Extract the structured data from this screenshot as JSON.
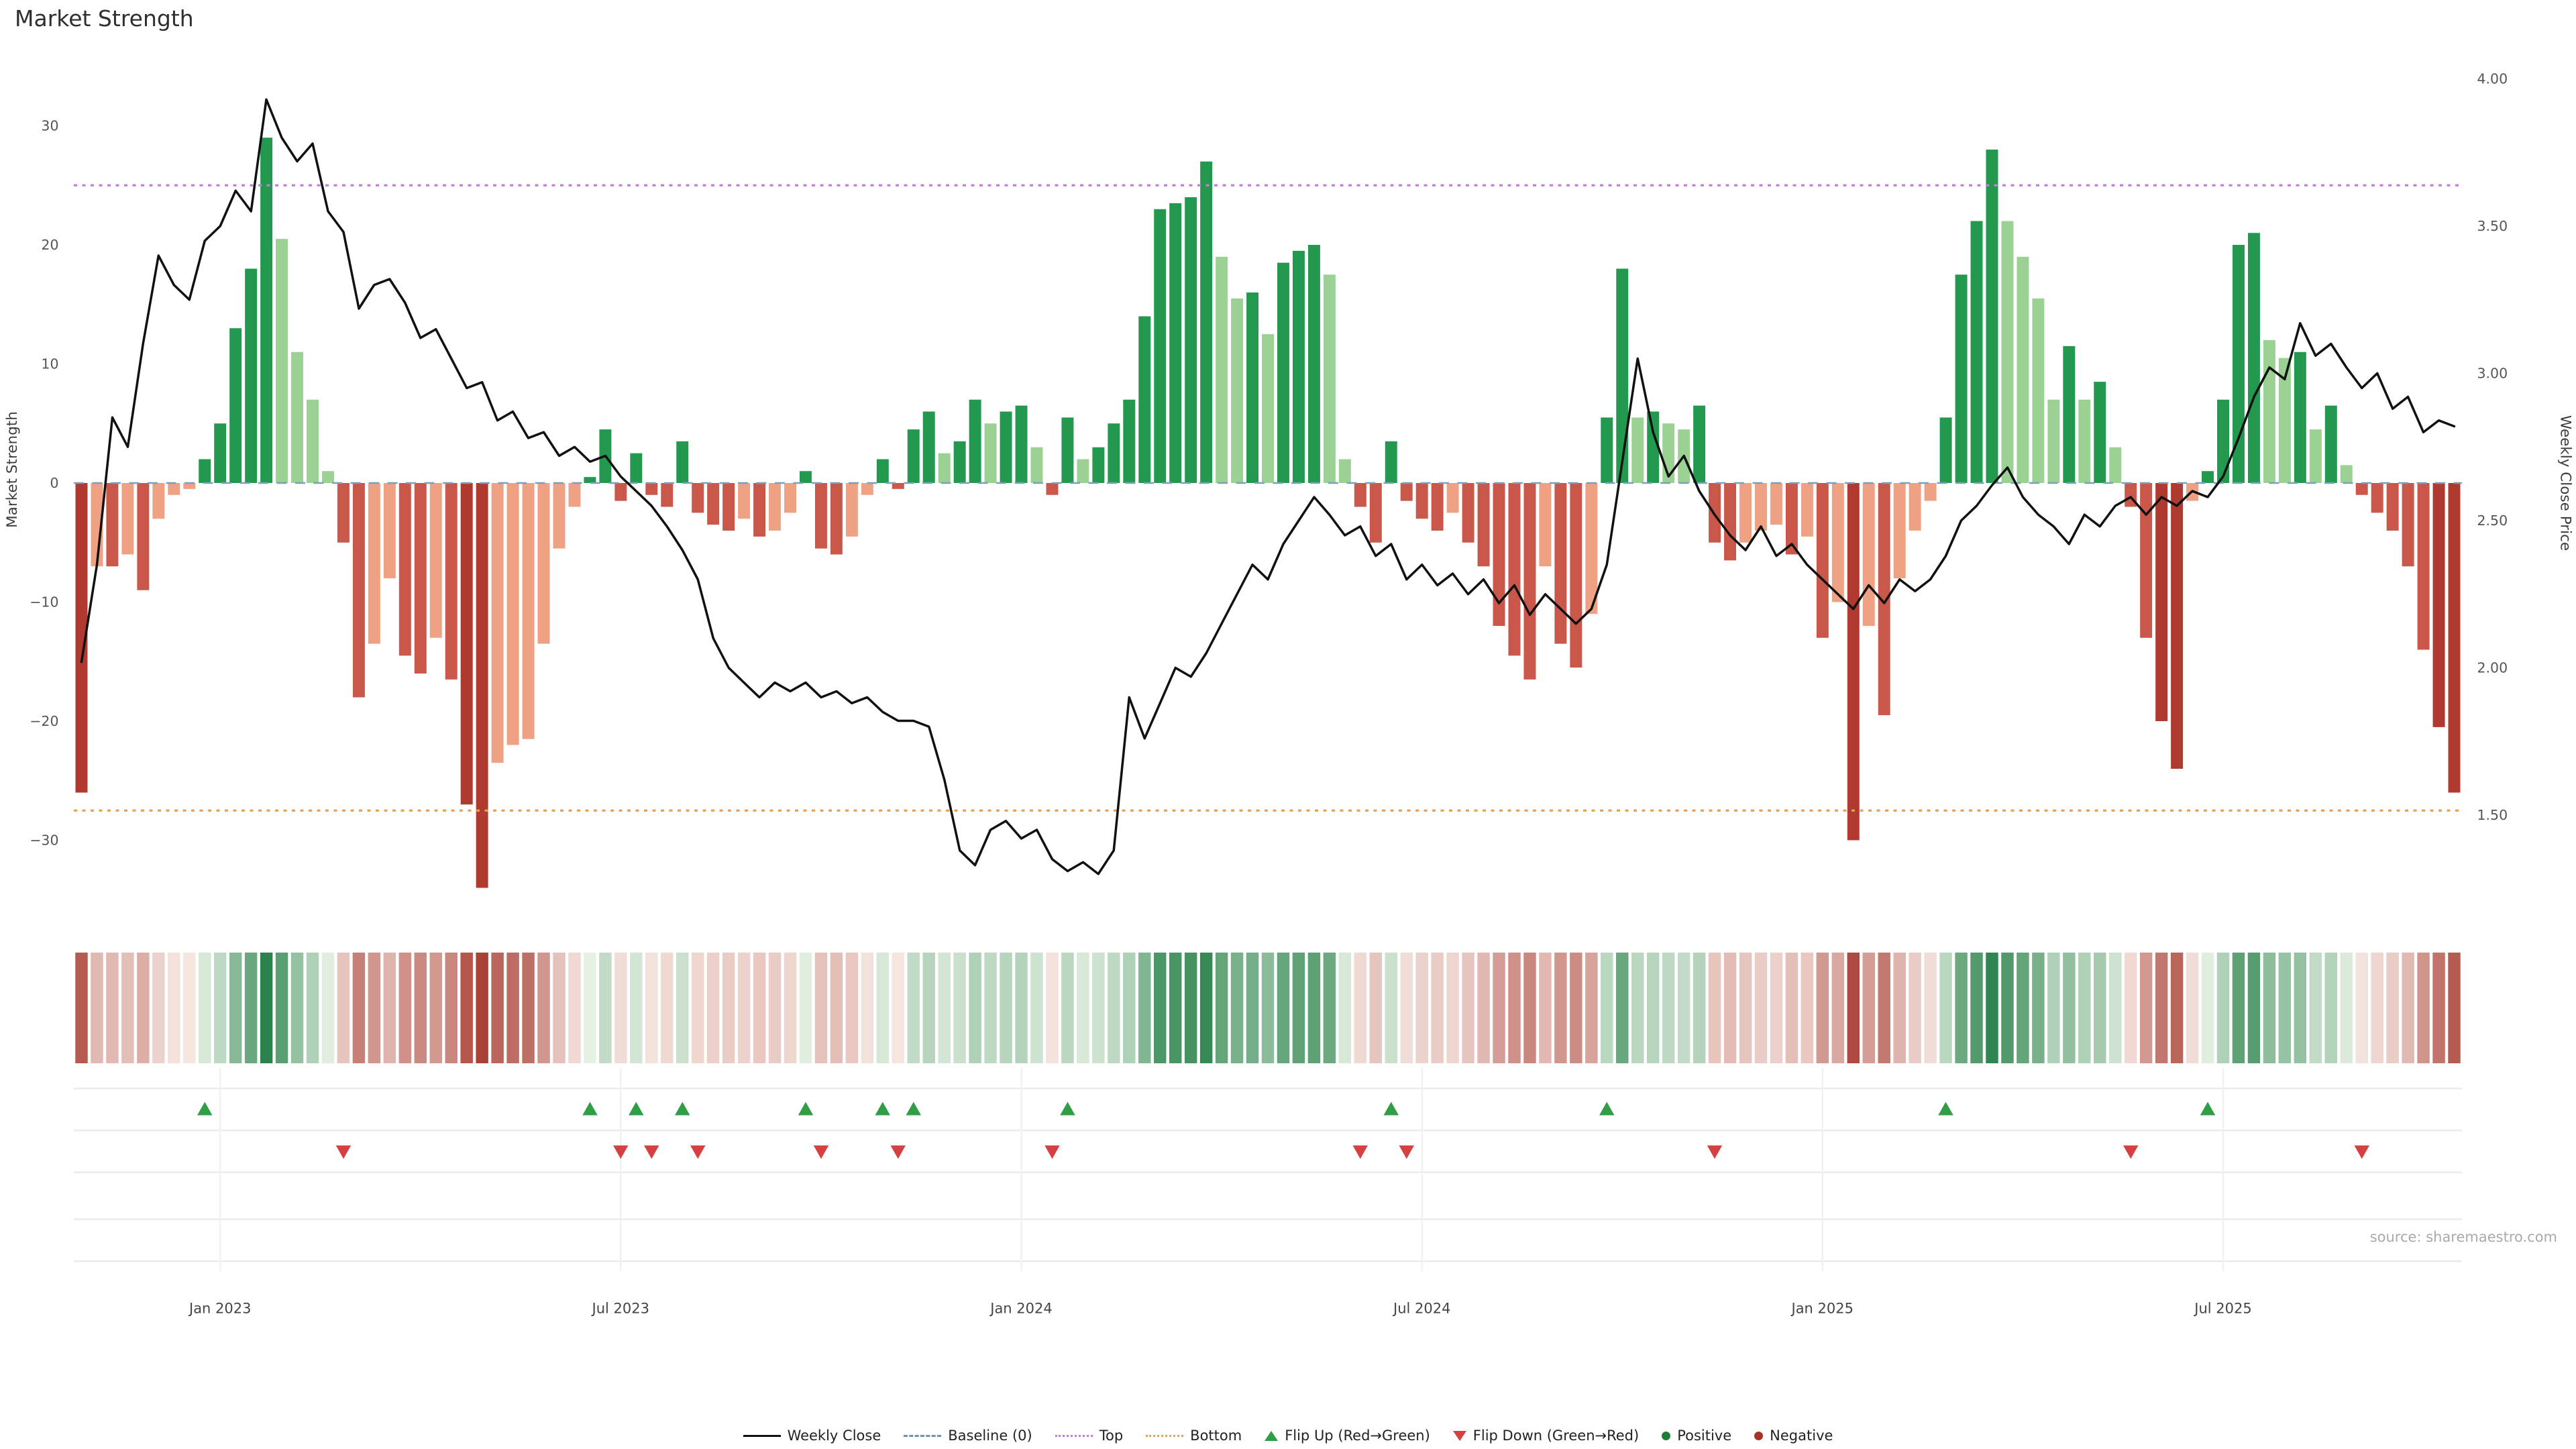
{
  "title": "Market Strength",
  "source": "source: sharemaestro.com",
  "axes": {
    "left_label": "Market Strength",
    "right_label": "Weekly Close Price",
    "left_ticks": [
      {
        "v": 30,
        "label": "30"
      },
      {
        "v": 20,
        "label": "20"
      },
      {
        "v": 10,
        "label": "10"
      },
      {
        "v": 0,
        "label": "0"
      },
      {
        "v": -10,
        "label": "−10"
      },
      {
        "v": -20,
        "label": "−20"
      },
      {
        "v": -30,
        "label": "−30"
      }
    ],
    "right_ticks": [
      {
        "v": 4.0,
        "label": "4.00"
      },
      {
        "v": 3.5,
        "label": "3.50"
      },
      {
        "v": 3.0,
        "label": "3.00"
      },
      {
        "v": 2.5,
        "label": "2.50"
      },
      {
        "v": 2.0,
        "label": "2.00"
      },
      {
        "v": 1.5,
        "label": "1.50"
      }
    ]
  },
  "colors": {
    "positive_dark": "#23984f",
    "positive_light": "#9bd294",
    "negative_dark": "#c9574a",
    "negative_deepest": "#b03a30",
    "negative_light": "#efa184",
    "heat_pos": "#1b7a3f",
    "heat_neg": "#aa4136",
    "top_line": "#c07fd8",
    "bottom_line": "#e6a050",
    "baseline": "#7aa0bd",
    "price_line": "#111111",
    "flip_up": "#2f9e44",
    "flip_down": "#d64040"
  },
  "legend": {
    "items": [
      {
        "label": "Weekly Close",
        "swatch": "line",
        "color": "#111111"
      },
      {
        "label": "Baseline (0)",
        "swatch": "dashed",
        "color": "#6b93b5"
      },
      {
        "label": "Top",
        "swatch": "dotted",
        "color": "#bf7fd6"
      },
      {
        "label": "Bottom",
        "swatch": "dotted",
        "color": "#e6a050"
      },
      {
        "label": "Flip Up (Red→Green)",
        "swatch": "triangle-up",
        "color": "#2f9e44"
      },
      {
        "label": "Flip Down (Green→Red)",
        "swatch": "triangle-down",
        "color": "#d64040"
      },
      {
        "label": "Positive",
        "swatch": "dot",
        "color": "#1e7e34"
      },
      {
        "label": "Negative",
        "swatch": "dot",
        "color": "#a93226"
      }
    ]
  },
  "chart_data": {
    "type": "bar",
    "title": "Market Strength",
    "x_unit": "week",
    "grid": "off",
    "legend_position": "bottom",
    "x_ticks": [
      {
        "index": 9,
        "label": "Jan 2023"
      },
      {
        "index": 35,
        "label": "Jul 2023"
      },
      {
        "index": 61,
        "label": "Jan 2024"
      },
      {
        "index": 87,
        "label": "Jul 2024"
      },
      {
        "index": 113,
        "label": "Jan 2025"
      },
      {
        "index": 139,
        "label": "Jul 2025"
      }
    ],
    "ylim_left": [
      -34,
      36
    ],
    "ylim_right": [
      1.25,
      4.08
    ],
    "reference_lines": {
      "baseline": 0,
      "top": 25,
      "bottom": -27.5
    },
    "flip_up_weeks": [
      8,
      33,
      36,
      39,
      47,
      52,
      54,
      64,
      85,
      99,
      121,
      138
    ],
    "flip_down_weeks": [
      17,
      35,
      37,
      40,
      48,
      53,
      63,
      83,
      86,
      106,
      133,
      148
    ],
    "series": [
      {
        "name": "Market Strength",
        "type": "bar",
        "axis": "left",
        "values": [
          -26,
          -7,
          -7,
          -6,
          -9,
          -3,
          -1,
          -0.5,
          2,
          5,
          13,
          18,
          29,
          20.5,
          11,
          7,
          1,
          -5,
          -18,
          -13.5,
          -8,
          -14.5,
          -16,
          -13,
          -16.5,
          -27,
          -34,
          -23.5,
          -22,
          -21.5,
          -13.5,
          -5.5,
          -2,
          0.5,
          4.5,
          -1.5,
          2.5,
          -1,
          -2,
          3.5,
          -2.5,
          -3.5,
          -4,
          -3,
          -4.5,
          -4,
          -2.5,
          1,
          -5.5,
          -6,
          -4.5,
          -1,
          2,
          -0.5,
          4.5,
          6,
          2.5,
          3.5,
          7,
          5,
          6,
          6.5,
          3,
          -1,
          5.5,
          2,
          3,
          5,
          7,
          14,
          23,
          23.5,
          24,
          27,
          19,
          15.5,
          16,
          12.5,
          18.5,
          19.5,
          20,
          17.5,
          2,
          -2,
          -5,
          3.5,
          -1.5,
          -3,
          -4,
          -2.5,
          -5,
          -7,
          -12,
          -14.5,
          -16.5,
          -7,
          -13.5,
          -15.5,
          -11,
          5.5,
          18,
          5.5,
          6,
          5,
          4.5,
          6.5,
          -5,
          -6.5,
          -5,
          -4,
          -3.5,
          -6,
          -4.5,
          -13,
          -10,
          -30,
          -12,
          -19.5,
          -8,
          -4,
          -1.5,
          5.5,
          17.5,
          22,
          28,
          22,
          19,
          15.5,
          7,
          11.5,
          7,
          8.5,
          3,
          -2,
          -13,
          -20,
          -24,
          -1.5,
          1,
          7,
          20,
          21,
          12,
          10.5,
          11,
          4.5,
          6.5,
          1.5,
          -1,
          -2.5,
          -4,
          -7,
          -14,
          -20.5,
          -26
        ]
      },
      {
        "name": "Weekly Close",
        "type": "line",
        "axis": "right",
        "values": [
          2.02,
          2.35,
          2.85,
          2.75,
          3.1,
          3.4,
          3.3,
          3.25,
          3.45,
          3.5,
          3.62,
          3.55,
          3.93,
          3.8,
          3.72,
          3.78,
          3.55,
          3.48,
          3.22,
          3.3,
          3.32,
          3.24,
          3.12,
          3.15,
          3.05,
          2.95,
          2.97,
          2.84,
          2.87,
          2.78,
          2.8,
          2.72,
          2.75,
          2.7,
          2.72,
          2.65,
          2.6,
          2.55,
          2.48,
          2.4,
          2.3,
          2.1,
          2.0,
          1.95,
          1.9,
          1.95,
          1.92,
          1.95,
          1.9,
          1.92,
          1.88,
          1.9,
          1.85,
          1.82,
          1.82,
          1.8,
          1.62,
          1.38,
          1.33,
          1.45,
          1.48,
          1.42,
          1.45,
          1.35,
          1.31,
          1.34,
          1.3,
          1.38,
          1.9,
          1.76,
          1.88,
          2.0,
          1.97,
          2.05,
          2.15,
          2.25,
          2.35,
          2.3,
          2.42,
          2.5,
          2.58,
          2.52,
          2.45,
          2.48,
          2.38,
          2.42,
          2.3,
          2.35,
          2.28,
          2.32,
          2.25,
          2.3,
          2.22,
          2.28,
          2.18,
          2.25,
          2.2,
          2.15,
          2.2,
          2.35,
          2.7,
          3.05,
          2.8,
          2.65,
          2.72,
          2.6,
          2.52,
          2.45,
          2.4,
          2.48,
          2.38,
          2.42,
          2.35,
          2.3,
          2.25,
          2.2,
          2.28,
          2.22,
          2.3,
          2.26,
          2.3,
          2.38,
          2.5,
          2.55,
          2.62,
          2.68,
          2.58,
          2.52,
          2.48,
          2.42,
          2.52,
          2.48,
          2.55,
          2.58,
          2.52,
          2.58,
          2.55,
          2.6,
          2.58,
          2.65,
          2.78,
          2.92,
          3.02,
          2.98,
          3.17,
          3.06,
          3.1,
          3.02,
          2.95,
          3.0,
          2.88,
          2.92,
          2.8,
          2.84,
          2.82
        ]
      }
    ]
  }
}
